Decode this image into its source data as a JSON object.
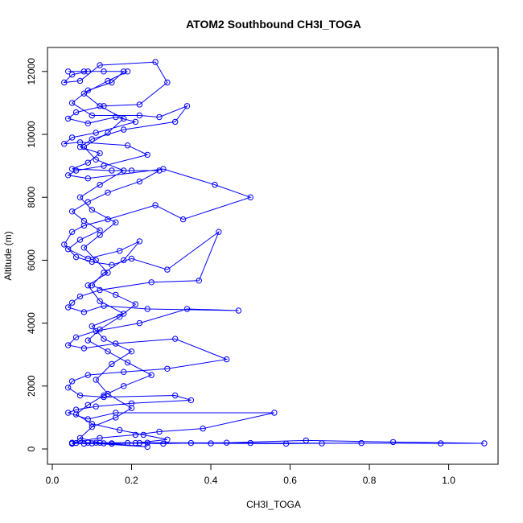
{
  "chart_data": {
    "type": "line",
    "title": "ATOM2 Southbound CH3I_TOGA",
    "xlabel": "CH3I_TOGA",
    "ylabel": "Altitude (m)",
    "xlim": [
      0.0,
      1.09
    ],
    "ylim": [
      0,
      12300
    ],
    "x_ticks": [
      0.0,
      0.2,
      0.4,
      0.6,
      0.8,
      1.0
    ],
    "x_tick_labels": [
      "0.0",
      "0.2",
      "0.4",
      "0.6",
      "0.8",
      "1.0"
    ],
    "y_ticks": [
      0,
      2000,
      4000,
      6000,
      8000,
      10000,
      12000
    ],
    "y_tick_labels": [
      "0",
      "2000",
      "4000",
      "6000",
      "8000",
      "10000",
      "12000"
    ],
    "grid": false,
    "legend": "none",
    "series_color": "#0000ff",
    "marker": "open-circle",
    "series": [
      {
        "points": [
          [
            0.09,
            12000
          ],
          [
            0.05,
            11900
          ],
          [
            0.03,
            11650
          ],
          [
            0.07,
            11700
          ],
          [
            0.12,
            12200
          ],
          [
            0.26,
            12300
          ],
          [
            0.29,
            11650
          ],
          [
            0.22,
            10950
          ],
          [
            0.13,
            10900
          ],
          [
            0.06,
            10700
          ],
          [
            0.04,
            10500
          ],
          [
            0.09,
            10350
          ],
          [
            0.16,
            10550
          ],
          [
            0.21,
            10400
          ],
          [
            0.11,
            10050
          ],
          [
            0.05,
            9900
          ],
          [
            0.03,
            9700
          ],
          [
            0.07,
            9750
          ],
          [
            0.19,
            9650
          ],
          [
            0.24,
            9350
          ],
          [
            0.13,
            9000
          ],
          [
            0.06,
            8850
          ],
          [
            0.04,
            8700
          ],
          [
            0.09,
            8600
          ],
          [
            0.28,
            8900
          ],
          [
            0.41,
            8400
          ],
          [
            0.5,
            8000
          ],
          [
            0.33,
            7300
          ],
          [
            0.26,
            7750
          ],
          [
            0.14,
            7300
          ],
          [
            0.08,
            7100
          ],
          [
            0.05,
            6900
          ],
          [
            0.03,
            6500
          ],
          [
            0.06,
            6100
          ],
          [
            0.1,
            5950
          ],
          [
            0.15,
            5850
          ],
          [
            0.2,
            6050
          ],
          [
            0.29,
            5700
          ],
          [
            0.42,
            6900
          ],
          [
            0.37,
            5350
          ],
          [
            0.25,
            5300
          ],
          [
            0.12,
            5050
          ],
          [
            0.07,
            4850
          ],
          [
            0.05,
            4650
          ],
          [
            0.04,
            4500
          ],
          [
            0.08,
            4350
          ],
          [
            0.13,
            4550
          ],
          [
            0.24,
            4450
          ],
          [
            0.47,
            4400
          ],
          [
            0.34,
            4450
          ],
          [
            0.22,
            4000
          ],
          [
            0.11,
            3750
          ],
          [
            0.06,
            3550
          ],
          [
            0.04,
            3300
          ],
          [
            0.08,
            3200
          ],
          [
            0.16,
            3350
          ],
          [
            0.31,
            3500
          ],
          [
            0.44,
            2850
          ],
          [
            0.29,
            2550
          ],
          [
            0.18,
            2450
          ],
          [
            0.09,
            2350
          ],
          [
            0.05,
            2150
          ],
          [
            0.04,
            1950
          ],
          [
            0.07,
            1700
          ],
          [
            0.13,
            1650
          ],
          [
            0.31,
            1700
          ],
          [
            0.35,
            1550
          ],
          [
            0.2,
            1450
          ],
          [
            0.11,
            1350
          ],
          [
            0.06,
            1250
          ],
          [
            0.04,
            1150
          ],
          [
            0.09,
            950
          ],
          [
            0.16,
            1150
          ],
          [
            0.56,
            1150
          ],
          [
            0.38,
            650
          ],
          [
            0.27,
            550
          ],
          [
            0.21,
            450
          ],
          [
            0.12,
            350
          ],
          [
            0.07,
            250
          ],
          [
            0.05,
            200
          ],
          [
            0.98,
            180
          ],
          [
            1.09,
            180
          ],
          [
            0.86,
            220
          ],
          [
            0.64,
            270
          ],
          [
            0.44,
            200
          ],
          [
            0.35,
            190
          ],
          [
            0.28,
            170
          ],
          [
            0.19,
            190
          ],
          [
            0.13,
            180
          ],
          [
            0.08,
            170
          ],
          [
            0.06,
            190
          ],
          [
            0.05,
            180
          ],
          [
            0.11,
            200
          ],
          [
            0.24,
            200
          ],
          [
            0.5,
            190
          ],
          [
            0.68,
            180
          ],
          [
            0.78,
            190
          ],
          [
            0.59,
            170
          ],
          [
            0.4,
            180
          ],
          [
            0.22,
            190
          ],
          [
            0.15,
            170
          ],
          [
            0.1,
            180
          ],
          [
            0.24,
            70
          ],
          [
            0.12,
            200
          ],
          [
            0.07,
            350
          ],
          [
            0.1,
            700
          ],
          [
            0.16,
            1000
          ],
          [
            0.2,
            1300
          ],
          [
            0.14,
            1750
          ],
          [
            0.11,
            2200
          ],
          [
            0.15,
            2700
          ],
          [
            0.2,
            3100
          ],
          [
            0.13,
            3500
          ],
          [
            0.1,
            3900
          ],
          [
            0.18,
            4300
          ],
          [
            0.12,
            4700
          ],
          [
            0.09,
            5200
          ],
          [
            0.14,
            5600
          ],
          [
            0.11,
            6000
          ],
          [
            0.08,
            6400
          ],
          [
            0.12,
            6800
          ],
          [
            0.16,
            7200
          ],
          [
            0.1,
            7600
          ],
          [
            0.07,
            8000
          ],
          [
            0.12,
            8400
          ],
          [
            0.18,
            8850
          ],
          [
            0.11,
            9200
          ],
          [
            0.08,
            9600
          ],
          [
            0.14,
            10050
          ],
          [
            0.18,
            10500
          ],
          [
            0.12,
            10900
          ],
          [
            0.08,
            11300
          ],
          [
            0.14,
            11700
          ],
          [
            0.19,
            12000
          ]
        ]
      },
      {
        "points": [
          [
            0.04,
            12000
          ],
          [
            0.08,
            12000
          ],
          [
            0.13,
            12000
          ],
          [
            0.18,
            12000
          ],
          [
            0.15,
            11650
          ],
          [
            0.09,
            11400
          ],
          [
            0.05,
            11000
          ],
          [
            0.1,
            10600
          ],
          [
            0.22,
            10600
          ],
          [
            0.27,
            10550
          ],
          [
            0.34,
            10900
          ],
          [
            0.31,
            10400
          ],
          [
            0.18,
            10150
          ],
          [
            0.1,
            9850
          ],
          [
            0.07,
            9600
          ],
          [
            0.12,
            9400
          ],
          [
            0.09,
            9100
          ],
          [
            0.05,
            8900
          ],
          [
            0.15,
            8850
          ],
          [
            0.2,
            8850
          ],
          [
            0.27,
            8850
          ],
          [
            0.22,
            8500
          ],
          [
            0.14,
            8150
          ],
          [
            0.09,
            7850
          ],
          [
            0.05,
            7550
          ],
          [
            0.08,
            7250
          ],
          [
            0.12,
            6950
          ],
          [
            0.07,
            6650
          ],
          [
            0.04,
            6350
          ],
          [
            0.09,
            6050
          ],
          [
            0.17,
            6300
          ],
          [
            0.22,
            6600
          ],
          [
            0.18,
            6000
          ],
          [
            0.13,
            5600
          ],
          [
            0.1,
            5200
          ],
          [
            0.16,
            4900
          ],
          [
            0.21,
            4600
          ],
          [
            0.17,
            4200
          ],
          [
            0.12,
            3800
          ],
          [
            0.09,
            3450
          ],
          [
            0.14,
            3100
          ],
          [
            0.19,
            2750
          ],
          [
            0.25,
            2350
          ],
          [
            0.18,
            2000
          ],
          [
            0.13,
            1700
          ],
          [
            0.09,
            1400
          ],
          [
            0.06,
            1100
          ],
          [
            0.1,
            800
          ],
          [
            0.17,
            600
          ],
          [
            0.23,
            450
          ],
          [
            0.29,
            300
          ],
          [
            0.21,
            190
          ],
          [
            0.15,
            180
          ],
          [
            0.09,
            200
          ],
          [
            0.05,
            170
          ]
        ]
      }
    ]
  }
}
